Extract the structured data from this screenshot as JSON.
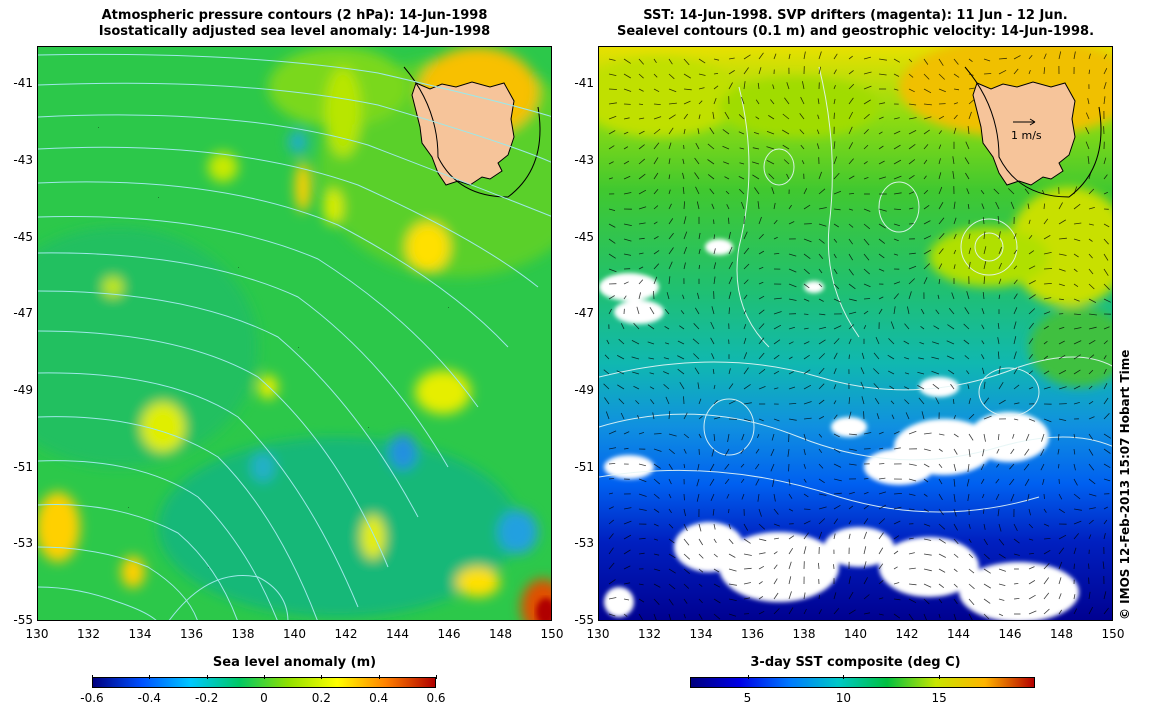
{
  "left_panel": {
    "title_line1": "Atmospheric pressure contours (2 hPa): 14-Jun-1998",
    "title_line2": "Isostatically adjusted sea level anomaly: 14-Jun-1998",
    "colorbar": {
      "title": "Sea level anomaly (m)",
      "ticks": [
        "-0.6",
        "-0.4",
        "-0.2",
        "0",
        "0.2",
        "0.4",
        "0.6"
      ],
      "range": [
        -0.6,
        0.6
      ]
    }
  },
  "right_panel": {
    "title_line1": "SST: 14-Jun-1998. SVP drifters (magenta): 11 Jun - 12 Jun.",
    "title_line2": "Sealevel contours (0.1 m) and geostrophic velocity: 14-Jun-1998.",
    "velocity_scale_label": "1 m/s",
    "colorbar": {
      "title": "3-day SST composite (deg C)",
      "ticks": [
        "5",
        "10",
        "15"
      ],
      "range": [
        2,
        20
      ]
    }
  },
  "axes": {
    "lon_ticks": [
      "130",
      "132",
      "134",
      "136",
      "138",
      "140",
      "142",
      "144",
      "146",
      "148",
      "150"
    ],
    "lat_ticks": [
      "-41",
      "-43",
      "-45",
      "-47",
      "-49",
      "-51",
      "-53",
      "-55"
    ]
  },
  "credit": "© IMOS 12-Feb-2013 15:07 Hobart Time",
  "colors": {
    "land": "#f6c49a",
    "sla_ramp": [
      "#00007f",
      "#0050ff",
      "#00c8ff",
      "#00c864",
      "#90e000",
      "#ffff00",
      "#ff8000",
      "#b00000"
    ],
    "sst_ramp": [
      "#00007f",
      "#0000e6",
      "#0078ff",
      "#00c8c8",
      "#00c040",
      "#c8e600",
      "#ffb400",
      "#b40000"
    ]
  }
}
